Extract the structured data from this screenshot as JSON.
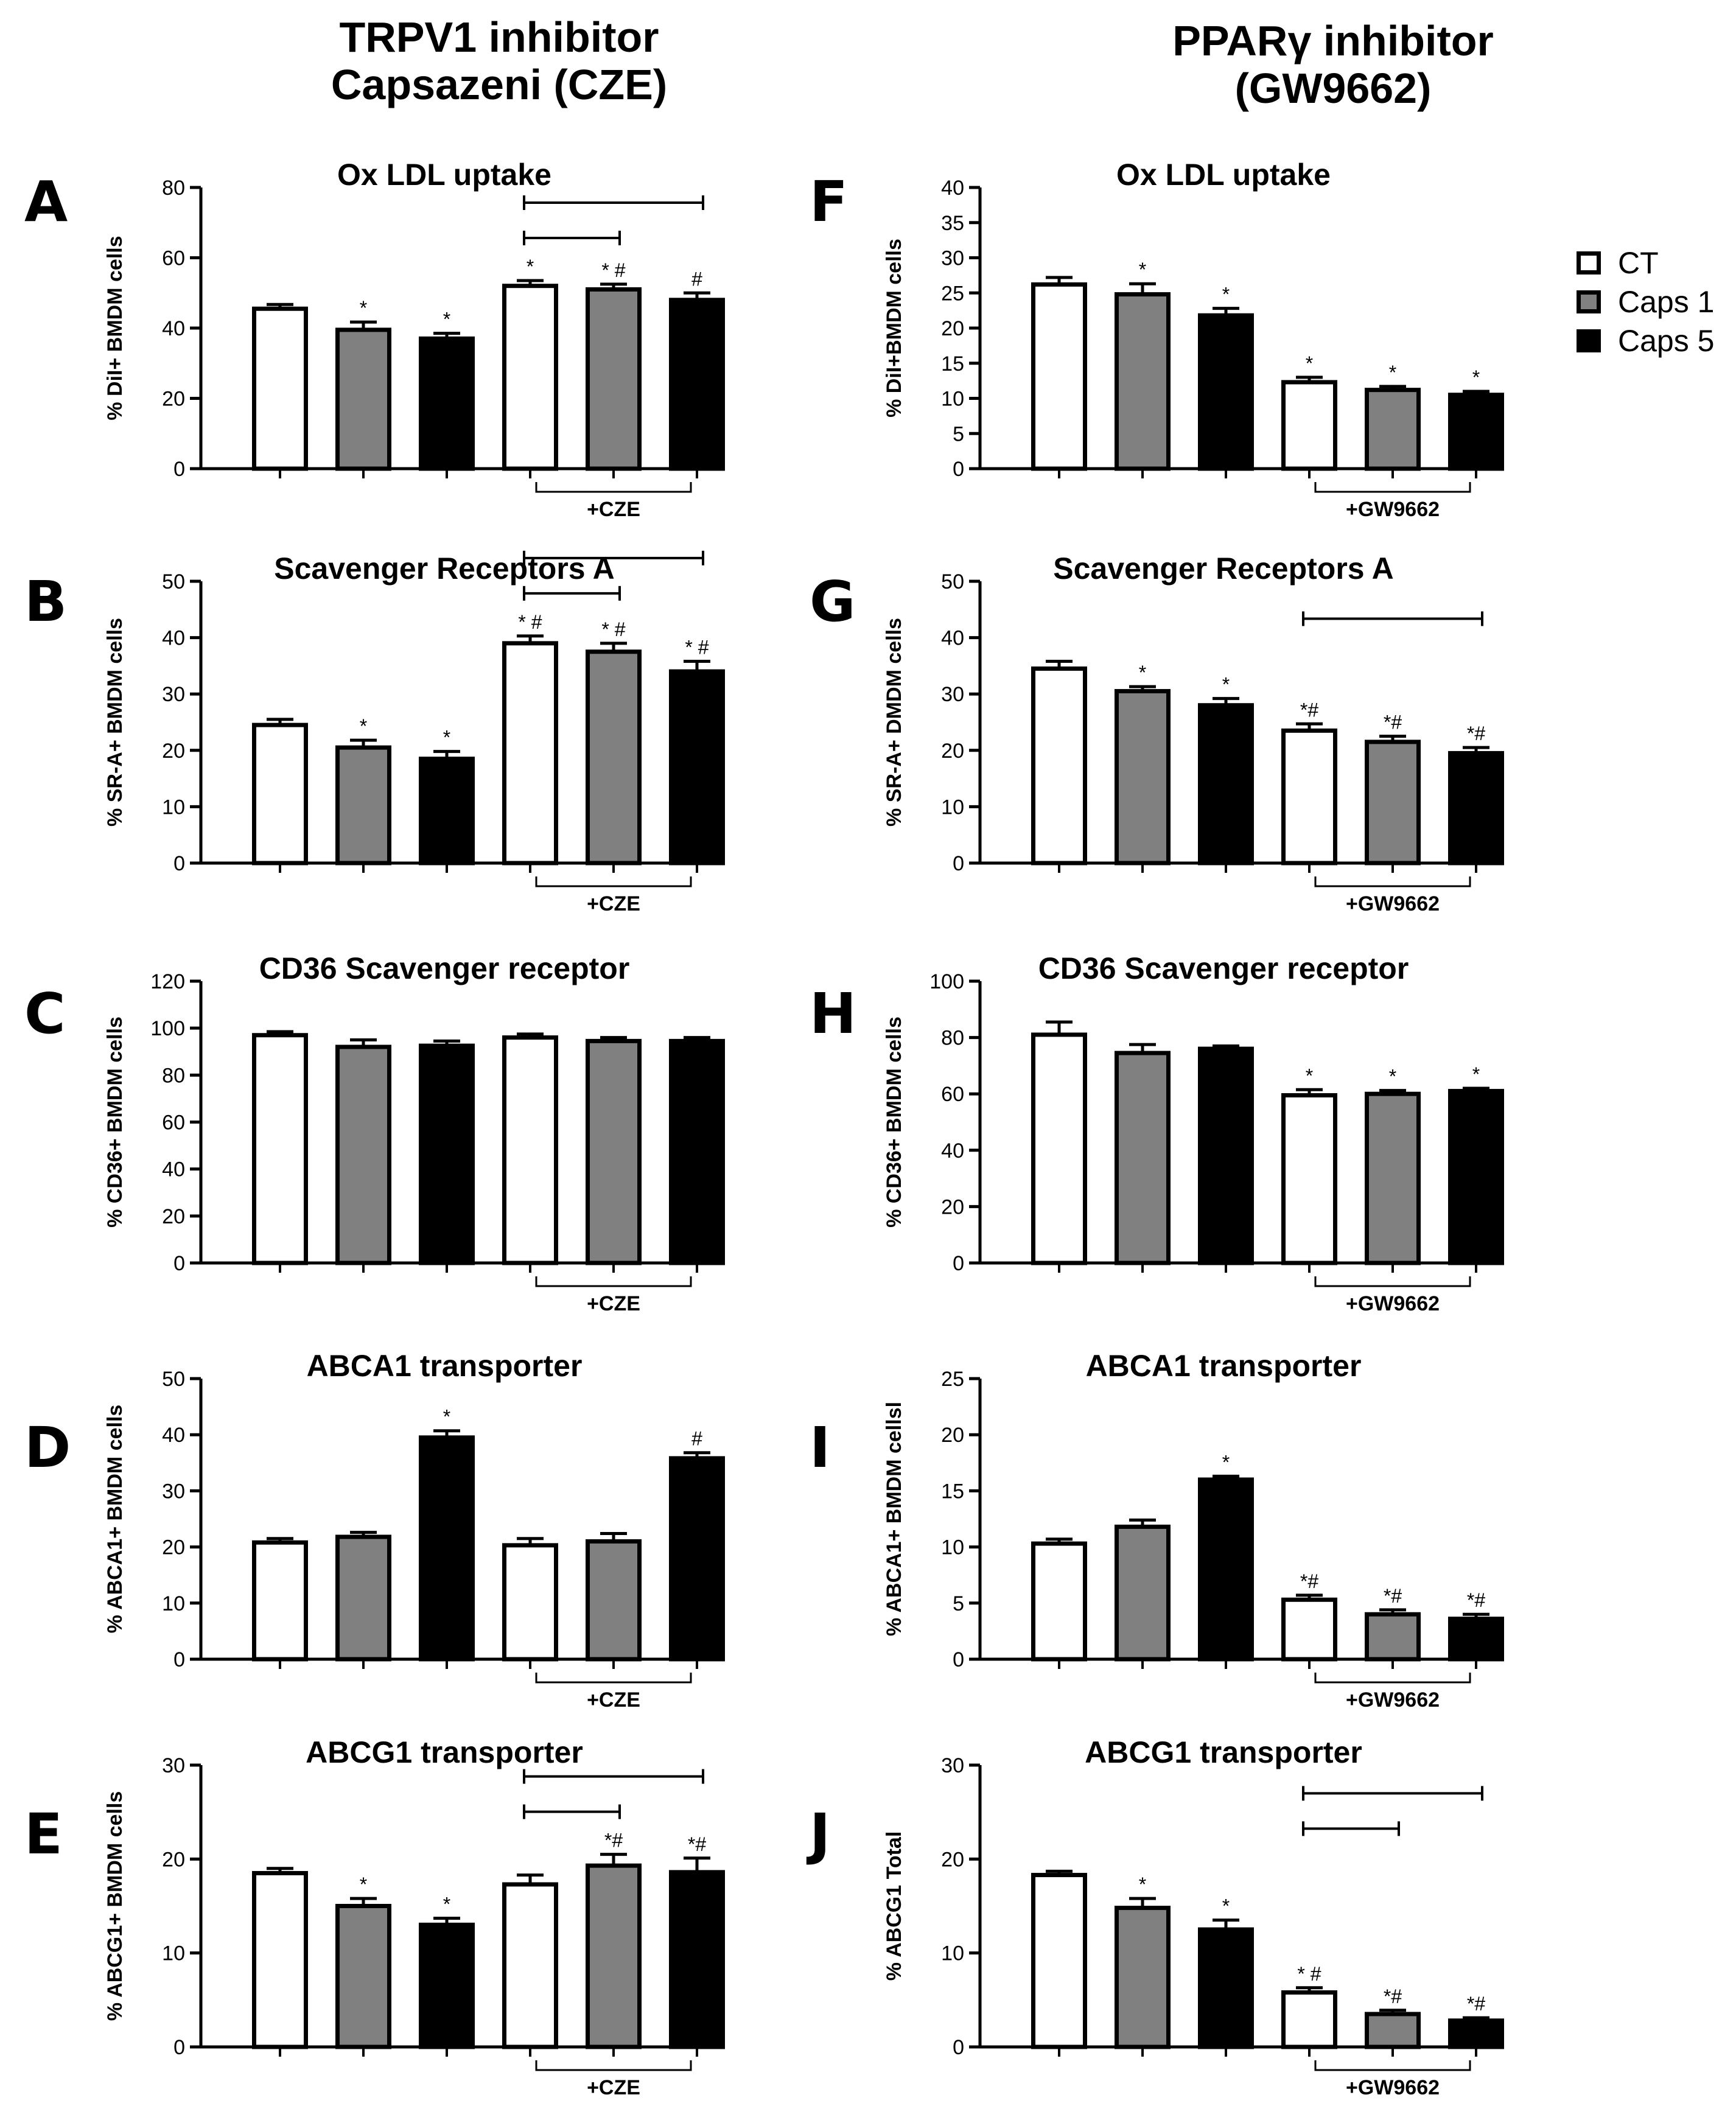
{
  "headers": {
    "left": "TRPV1 inhibitor\nCapsazeni (CZE)",
    "right": "PPARγ inhibitor\n(GW9662)"
  },
  "legend": [
    {
      "label": "CT",
      "color": "#ffffff"
    },
    {
      "label": "Caps 1",
      "color": "#808080"
    },
    {
      "label": "Caps 5",
      "color": "#000000"
    }
  ],
  "chart_data": [
    {
      "letter": "A",
      "type": "bar",
      "title": "Ox LDL uptake",
      "ylabel": "% DiI+  BMDM cells",
      "ylim": [
        0,
        80
      ],
      "ticks": [
        0,
        20,
        40,
        60,
        80
      ],
      "values": [
        45.5,
        39.5,
        37,
        52,
        51,
        48
      ],
      "errors": [
        1.2,
        2.2,
        1.5,
        1.5,
        1.5,
        2.0
      ],
      "annotations": [
        "",
        "*",
        "*",
        "*",
        "* #",
        "#"
      ],
      "treatment_label": "+CZE",
      "brackets": [
        {
          "from": 3,
          "to": 4,
          "level": 0
        },
        {
          "from": 3,
          "to": 5,
          "level": 1
        }
      ]
    },
    {
      "letter": "B",
      "type": "bar",
      "title": "Scavenger Receptors A",
      "ylabel": "% SR-A+ BMDM cells",
      "ylim": [
        0,
        50
      ],
      "ticks": [
        0,
        10,
        20,
        30,
        40,
        50
      ],
      "values": [
        24.5,
        20.5,
        18.5,
        39,
        37.5,
        34
      ],
      "errors": [
        1.0,
        1.3,
        1.3,
        1.3,
        1.5,
        1.8
      ],
      "annotations": [
        "",
        "*",
        "*",
        "* #",
        "* #",
        "* #"
      ],
      "treatment_label": "+CZE",
      "brackets": [
        {
          "from": 3,
          "to": 4,
          "level": 0
        },
        {
          "from": 3,
          "to": 5,
          "level": 1
        }
      ]
    },
    {
      "letter": "C",
      "type": "bar",
      "title": "CD36 Scavenger receptor",
      "ylabel": "% CD36+ BMDM cells",
      "ylim": [
        0,
        120
      ],
      "ticks": [
        0,
        20,
        40,
        60,
        80,
        100,
        120
      ],
      "values": [
        97,
        92,
        92.5,
        96,
        94.5,
        94.5
      ],
      "errors": [
        1.5,
        3.0,
        2.0,
        1.5,
        1.5,
        1.5
      ],
      "annotations": [
        "",
        "",
        "",
        "",
        "",
        ""
      ],
      "treatment_label": "+CZE",
      "brackets": []
    },
    {
      "letter": "D",
      "type": "bar",
      "title": "ABCA1 transporter",
      "ylabel": "% ABCA1+ BMDM cells",
      "ylim": [
        0,
        50
      ],
      "ticks": [
        0,
        10,
        20,
        30,
        40,
        50
      ],
      "values": [
        20.8,
        21.8,
        39.5,
        20.3,
        21,
        35.8
      ],
      "errors": [
        0.7,
        0.8,
        1.2,
        1.2,
        1.4,
        1.0
      ],
      "annotations": [
        "",
        "",
        "*",
        "",
        "",
        "#"
      ],
      "treatment_label": "+CZE",
      "brackets": []
    },
    {
      "letter": "E",
      "type": "bar",
      "title": "ABCG1 transporter",
      "ylabel": "% ABCG1+ BMDM cells",
      "ylim": [
        0,
        30
      ],
      "ticks": [
        0,
        10,
        20,
        30
      ],
      "values": [
        18.5,
        15,
        13,
        17.3,
        19.3,
        18.6
      ],
      "errors": [
        0.5,
        0.8,
        0.7,
        1.0,
        1.2,
        1.5
      ],
      "annotations": [
        "",
        "*",
        "*",
        "",
        "*#",
        "*#"
      ],
      "treatment_label": "+CZE",
      "brackets": [
        {
          "from": 3,
          "to": 4,
          "level": 0
        },
        {
          "from": 3,
          "to": 5,
          "level": 1
        }
      ]
    },
    {
      "letter": "F",
      "type": "bar",
      "title": "Ox LDL uptake",
      "ylabel": "% DiI+BMDM cells",
      "ylim": [
        0,
        40
      ],
      "ticks": [
        0,
        5,
        10,
        15,
        20,
        25,
        30,
        35,
        40
      ],
      "values": [
        26.2,
        24.8,
        21.8,
        12.3,
        11.2,
        10.5
      ],
      "errors": [
        1.0,
        1.5,
        1.0,
        0.7,
        0.5,
        0.5
      ],
      "annotations": [
        "",
        "*",
        "*",
        "*",
        "*",
        "*"
      ],
      "treatment_label": "+GW9662",
      "brackets": []
    },
    {
      "letter": "G",
      "type": "bar",
      "title": "Scavenger Receptors A",
      "ylabel": "% SR-A+ DMDM cells",
      "ylim": [
        0,
        50
      ],
      "ticks": [
        0,
        10,
        20,
        30,
        40,
        50
      ],
      "values": [
        34.5,
        30.5,
        28,
        23.5,
        21.5,
        19.5
      ],
      "errors": [
        1.3,
        0.8,
        1.2,
        1.2,
        1.0,
        1.0
      ],
      "annotations": [
        "",
        "*",
        "*",
        "*#",
        "*#",
        "*#"
      ],
      "treatment_label": "+GW9662",
      "brackets": [
        {
          "from": 3,
          "to": 5,
          "level": 0
        }
      ]
    },
    {
      "letter": "H",
      "type": "bar",
      "title": "CD36 Scavenger receptor",
      "ylabel": "% CD36+ BMDM cells",
      "ylim": [
        0,
        100
      ],
      "ticks": [
        0,
        20,
        40,
        60,
        80,
        100
      ],
      "values": [
        81,
        74.5,
        76,
        59.5,
        60,
        61
      ],
      "errors": [
        4.5,
        3.0,
        1.0,
        2.0,
        1.2,
        1.0
      ],
      "annotations": [
        "",
        "",
        "",
        "*",
        "*",
        "*"
      ],
      "treatment_label": "+GW9662",
      "brackets": []
    },
    {
      "letter": "I",
      "type": "bar",
      "title": "ABCA1 transporter",
      "ylabel": "% ABCA1+ BMDM cellsl",
      "ylim": [
        0,
        25
      ],
      "ticks": [
        0,
        5,
        10,
        15,
        20,
        25
      ],
      "values": [
        10.3,
        11.8,
        16,
        5.3,
        4,
        3.6
      ],
      "errors": [
        0.4,
        0.6,
        0.3,
        0.4,
        0.4,
        0.4
      ],
      "annotations": [
        "",
        "",
        "*",
        "*#",
        "*#",
        "*#"
      ],
      "treatment_label": "+GW9662",
      "brackets": []
    },
    {
      "letter": "J",
      "type": "bar",
      "title": "ABCG1 transporter",
      "ylabel": "% ABCG1 Total",
      "ylim": [
        0,
        30
      ],
      "ticks": [
        0,
        10,
        20,
        30
      ],
      "values": [
        18.3,
        14.8,
        12.5,
        5.8,
        3.5,
        2.8
      ],
      "errors": [
        0.4,
        1.0,
        1.0,
        0.5,
        0.4,
        0.3
      ],
      "annotations": [
        "",
        "*",
        "*",
        "* #",
        "*#",
        "*#"
      ],
      "treatment_label": "+GW9662",
      "brackets": [
        {
          "from": 3,
          "to": 4,
          "level": 0
        },
        {
          "from": 3,
          "to": 5,
          "level": 1
        }
      ]
    }
  ]
}
